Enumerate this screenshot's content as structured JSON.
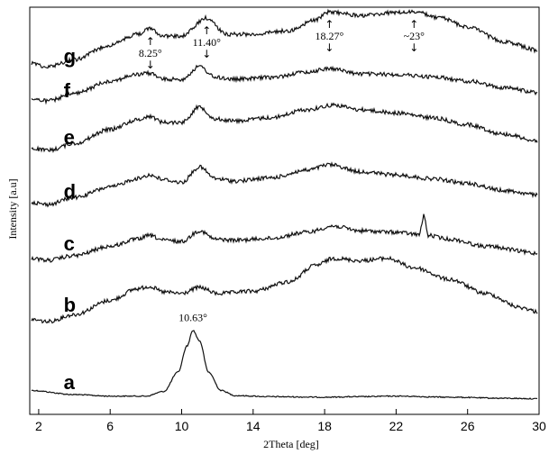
{
  "chart_data": {
    "type": "line",
    "xlabel": "2Theta [deg]",
    "ylabel": "Intensity [a.u]",
    "xlim": [
      1.5,
      30
    ],
    "x_ticks": [
      2,
      6,
      10,
      14,
      18,
      22,
      26,
      30
    ],
    "series": [
      {
        "name": "a",
        "x": [
          1.5,
          4,
          6,
          8,
          9,
          9.8,
          10.3,
          10.63,
          11,
          11.5,
          12.2,
          13,
          15,
          18,
          20,
          22,
          25,
          28,
          30
        ],
        "y": [
          0.2,
          0.12,
          0.09,
          0.09,
          0.18,
          0.55,
          1.05,
          1.35,
          1.15,
          0.55,
          0.2,
          0.1,
          0.08,
          0.07,
          0.08,
          0.09,
          0.07,
          0.05,
          0.04
        ]
      },
      {
        "name": "b",
        "x": [
          1.5,
          2.5,
          4,
          6,
          7.5,
          8.2,
          9,
          10,
          11,
          12,
          14,
          16,
          17.5,
          18.5,
          20,
          21.5,
          23,
          25,
          27,
          29,
          30
        ],
        "y": [
          0.3,
          0.25,
          0.4,
          0.7,
          0.95,
          1.0,
          0.88,
          0.85,
          0.98,
          0.85,
          0.9,
          1.1,
          1.45,
          1.6,
          1.55,
          1.6,
          1.4,
          1.15,
          0.85,
          0.55,
          0.45
        ]
      },
      {
        "name": "c",
        "x": [
          1.5,
          2.5,
          4,
          6,
          7.5,
          8.2,
          9,
          10,
          11,
          11.9,
          13,
          15,
          17,
          18.5,
          20,
          22,
          23.3,
          23.55,
          23.8,
          25,
          27,
          30
        ],
        "y": [
          0.3,
          0.25,
          0.35,
          0.55,
          0.7,
          0.78,
          0.68,
          0.65,
          0.88,
          0.7,
          0.68,
          0.72,
          0.85,
          0.98,
          0.88,
          0.85,
          0.8,
          1.2,
          0.78,
          0.7,
          0.55,
          0.4
        ]
      },
      {
        "name": "d",
        "x": [
          1.5,
          2.5,
          4,
          6,
          7.5,
          8.2,
          9,
          10,
          11,
          11.9,
          13,
          15,
          17,
          18.3,
          20,
          22,
          24,
          26,
          28,
          30
        ],
        "y": [
          0.3,
          0.25,
          0.4,
          0.62,
          0.8,
          0.88,
          0.78,
          0.72,
          1.05,
          0.8,
          0.75,
          0.82,
          0.98,
          1.1,
          0.95,
          0.88,
          0.8,
          0.7,
          0.55,
          0.45
        ]
      },
      {
        "name": "e",
        "x": [
          1.5,
          2.5,
          4,
          6,
          7.5,
          8.2,
          9,
          10,
          11,
          11.9,
          13,
          15,
          17,
          18.5,
          20,
          22,
          24,
          26,
          28,
          30
        ],
        "y": [
          0.3,
          0.25,
          0.4,
          0.7,
          0.9,
          0.98,
          0.85,
          0.85,
          1.18,
          0.92,
          0.88,
          0.95,
          1.12,
          1.22,
          1.12,
          1.05,
          0.95,
          0.8,
          0.6,
          0.45
        ]
      },
      {
        "name": "f",
        "x": [
          1.5,
          2.5,
          4,
          6,
          7.5,
          8.2,
          9,
          10,
          11,
          11.9,
          13,
          15,
          17,
          18.27,
          20,
          22,
          24,
          26,
          28,
          30
        ],
        "y": [
          0.3,
          0.25,
          0.45,
          0.8,
          0.98,
          1.02,
          0.85,
          0.85,
          1.2,
          0.9,
          0.85,
          0.9,
          1.05,
          1.15,
          1.0,
          0.98,
          0.92,
          0.8,
          0.62,
          0.48
        ]
      },
      {
        "name": "g",
        "x": [
          1.5,
          2.5,
          4,
          6,
          7.5,
          8.25,
          9,
          10,
          11.4,
          12.5,
          14,
          16,
          17.5,
          18.27,
          20,
          22,
          23,
          24.5,
          26,
          28,
          30
        ],
        "y": [
          0.3,
          0.2,
          0.4,
          0.8,
          1.1,
          1.25,
          1.05,
          1.05,
          1.55,
          1.1,
          1.1,
          1.2,
          1.5,
          1.72,
          1.62,
          1.7,
          1.72,
          1.55,
          1.3,
          0.9,
          0.65
        ]
      }
    ],
    "annotations": [
      {
        "text": "8.25°",
        "x": 8.25,
        "series": "g",
        "arrows": [
          "↑",
          "↓"
        ]
      },
      {
        "text": "11.40°",
        "x": 11.4,
        "series": "g",
        "arrows": [
          "↑",
          "↓"
        ]
      },
      {
        "text": "18.27°",
        "x": 18.27,
        "series": "g",
        "arrows": [
          "↑",
          "↓"
        ]
      },
      {
        "text": "~23°",
        "x": 23,
        "series": "g",
        "arrows": [
          "↑",
          "↓"
        ]
      },
      {
        "text": "10.63°",
        "x": 10.63,
        "series": "a",
        "arrows": []
      }
    ]
  }
}
